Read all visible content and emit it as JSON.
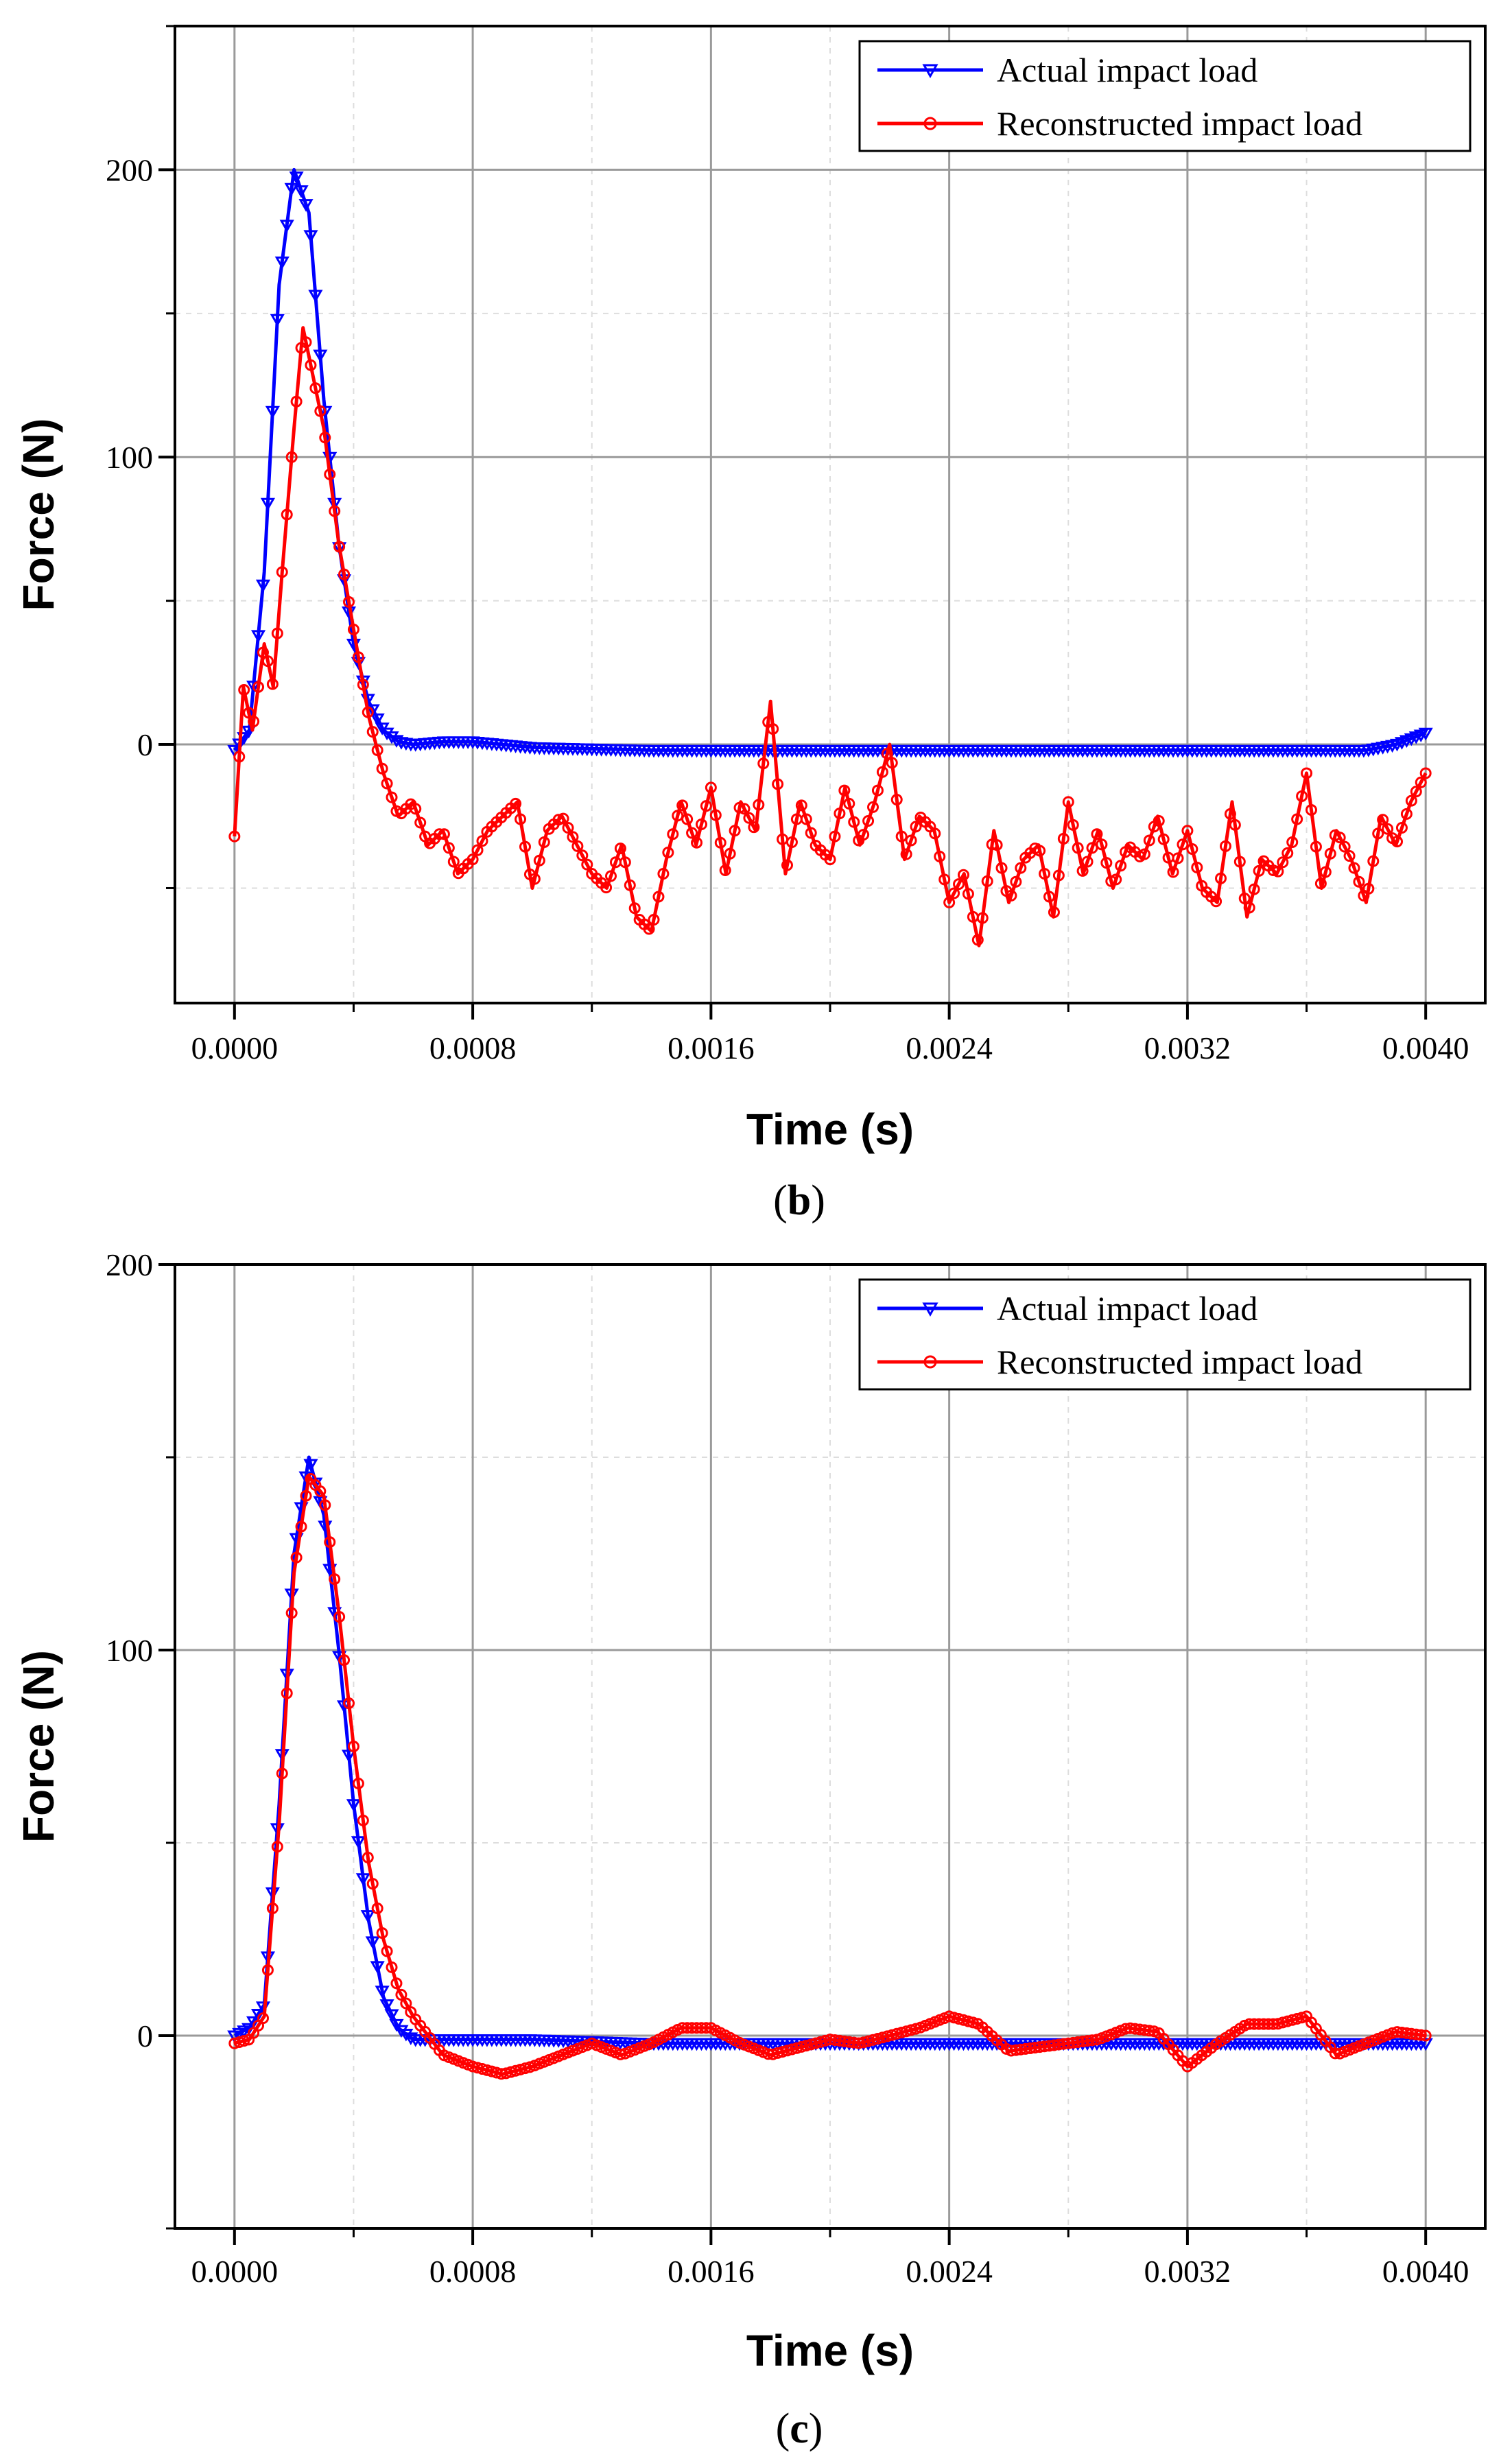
{
  "chart_data": [
    {
      "type": "line",
      "caption": "(b)",
      "caption_letter": "b",
      "xlabel": "Time (s)",
      "ylabel": "Force (N)",
      "xlim": [
        -0.0002,
        0.0042
      ],
      "ylim": [
        -90,
        250
      ],
      "xticks": [
        0.0,
        0.0008,
        0.0016,
        0.0024,
        0.0032,
        0.004
      ],
      "xtick_labels": [
        "0.0000",
        "0.0008",
        "0.0016",
        "0.0024",
        "0.0032",
        "0.0040"
      ],
      "yticks": [
        0,
        100,
        200
      ],
      "ytick_labels": [
        "0",
        "100",
        "200"
      ],
      "grid": true,
      "legend_position": "top-right",
      "series": [
        {
          "name": "Actual impact load",
          "color": "#0000ff",
          "marker": "triangle-down",
          "x": [
            0.0,
            5e-05,
            0.0001,
            0.00015,
            0.0002,
            0.00025,
            0.0003,
            0.00035,
            0.0004,
            0.00045,
            0.0005,
            0.00055,
            0.0006,
            0.0007,
            0.0008,
            0.001,
            0.0014,
            0.002,
            0.0026,
            0.0032,
            0.0036,
            0.0038,
            0.0039,
            0.004
          ],
          "y": [
            -2,
            5,
            60,
            160,
            200,
            185,
            120,
            70,
            35,
            15,
            5,
            1,
            0,
            1,
            1,
            -1,
            -2,
            -2,
            -2,
            -2,
            -2,
            -2,
            0,
            4
          ]
        },
        {
          "name": "Reconstructed impact load",
          "color": "#ff0000",
          "marker": "circle",
          "x": [
            0.0,
            3e-05,
            6e-05,
            0.0001,
            0.00013,
            0.00016,
            0.0002,
            0.00023,
            0.00026,
            0.0003,
            0.00035,
            0.0004,
            0.00045,
            0.0005,
            0.00055,
            0.0006,
            0.00065,
            0.0007,
            0.00075,
            0.0008,
            0.00085,
            0.0009,
            0.00095,
            0.001,
            0.00105,
            0.0011,
            0.00115,
            0.0012,
            0.00125,
            0.0013,
            0.00135,
            0.0014,
            0.00145,
            0.0015,
            0.00155,
            0.0016,
            0.00165,
            0.0017,
            0.00175,
            0.0018,
            0.00185,
            0.0019,
            0.00195,
            0.002,
            0.00205,
            0.0021,
            0.00215,
            0.0022,
            0.00225,
            0.0023,
            0.00235,
            0.0024,
            0.00245,
            0.0025,
            0.00255,
            0.0026,
            0.00265,
            0.0027,
            0.00275,
            0.0028,
            0.00285,
            0.0029,
            0.00295,
            0.003,
            0.00305,
            0.0031,
            0.00315,
            0.0032,
            0.00325,
            0.0033,
            0.00335,
            0.0034,
            0.00345,
            0.0035,
            0.00355,
            0.0036,
            0.00365,
            0.0037,
            0.00375,
            0.0038,
            0.00385,
            0.0039,
            0.00395,
            0.004
          ],
          "y": [
            -32,
            20,
            5,
            35,
            20,
            60,
            110,
            145,
            130,
            110,
            70,
            40,
            10,
            -10,
            -25,
            -20,
            -35,
            -30,
            -45,
            -40,
            -30,
            -25,
            -20,
            -50,
            -30,
            -25,
            -35,
            -45,
            -50,
            -35,
            -60,
            -65,
            -40,
            -20,
            -35,
            -15,
            -45,
            -20,
            -30,
            15,
            -45,
            -20,
            -35,
            -40,
            -15,
            -35,
            -20,
            0,
            -40,
            -25,
            -30,
            -55,
            -45,
            -70,
            -30,
            -55,
            -40,
            -35,
            -60,
            -20,
            -45,
            -30,
            -50,
            -35,
            -40,
            -25,
            -45,
            -30,
            -50,
            -55,
            -20,
            -60,
            -40,
            -45,
            -35,
            -10,
            -50,
            -30,
            -40,
            -55,
            -25,
            -35,
            -20,
            -10
          ]
        }
      ]
    },
    {
      "type": "line",
      "caption": "(c)",
      "caption_letter": "c",
      "xlabel": "Time (s)",
      "ylabel": "Force (N)",
      "xlim": [
        -0.0002,
        0.0042
      ],
      "ylim": [
        -50,
        200
      ],
      "xticks": [
        0.0,
        0.0008,
        0.0016,
        0.0024,
        0.0032,
        0.004
      ],
      "xtick_labels": [
        "0.0000",
        "0.0008",
        "0.0016",
        "0.0024",
        "0.0032",
        "0.0040"
      ],
      "yticks": [
        0,
        100,
        200
      ],
      "ytick_labels": [
        "0",
        "100",
        "200"
      ],
      "grid": true,
      "legend_position": "top-right",
      "series": [
        {
          "name": "Actual impact load",
          "color": "#0000ff",
          "marker": "triangle-down",
          "x": [
            0.0,
            5e-05,
            0.0001,
            0.00015,
            0.0002,
            0.00025,
            0.0003,
            0.00035,
            0.0004,
            0.00045,
            0.0005,
            0.00055,
            0.0006,
            0.0007,
            0.0008,
            0.001,
            0.0014,
            0.002,
            0.0026,
            0.0032,
            0.0036,
            0.0038,
            0.004
          ],
          "y": [
            0,
            2,
            8,
            60,
            125,
            150,
            135,
            100,
            60,
            30,
            10,
            2,
            -1,
            -1,
            -1,
            -1,
            -2,
            -2,
            -2,
            -2,
            -2,
            -2,
            -2
          ]
        },
        {
          "name": "Reconstructed impact load",
          "color": "#ff0000",
          "marker": "circle",
          "x": [
            0.0,
            5e-05,
            0.0001,
            0.00015,
            0.0002,
            0.00025,
            0.0003,
            0.00035,
            0.0004,
            0.00045,
            0.0005,
            0.00055,
            0.0006,
            0.00065,
            0.0007,
            0.0008,
            0.0009,
            0.001,
            0.0011,
            0.0012,
            0.0013,
            0.0014,
            0.0015,
            0.0016,
            0.0017,
            0.0018,
            0.0019,
            0.002,
            0.0021,
            0.0022,
            0.0023,
            0.0024,
            0.0025,
            0.0026,
            0.0027,
            0.0028,
            0.0029,
            0.003,
            0.0031,
            0.0032,
            0.0033,
            0.0034,
            0.0035,
            0.0036,
            0.0037,
            0.0038,
            0.0039,
            0.004
          ],
          "y": [
            -2,
            -1,
            5,
            55,
            120,
            145,
            140,
            110,
            75,
            45,
            25,
            12,
            5,
            0,
            -5,
            -8,
            -10,
            -8,
            -5,
            -2,
            -5,
            -2,
            2,
            2,
            -2,
            -5,
            -3,
            -1,
            -2,
            0,
            2,
            5,
            3,
            -4,
            -3,
            -2,
            -1,
            2,
            1,
            -8,
            -2,
            3,
            3,
            5,
            -5,
            -2,
            1,
            0
          ]
        }
      ]
    }
  ]
}
